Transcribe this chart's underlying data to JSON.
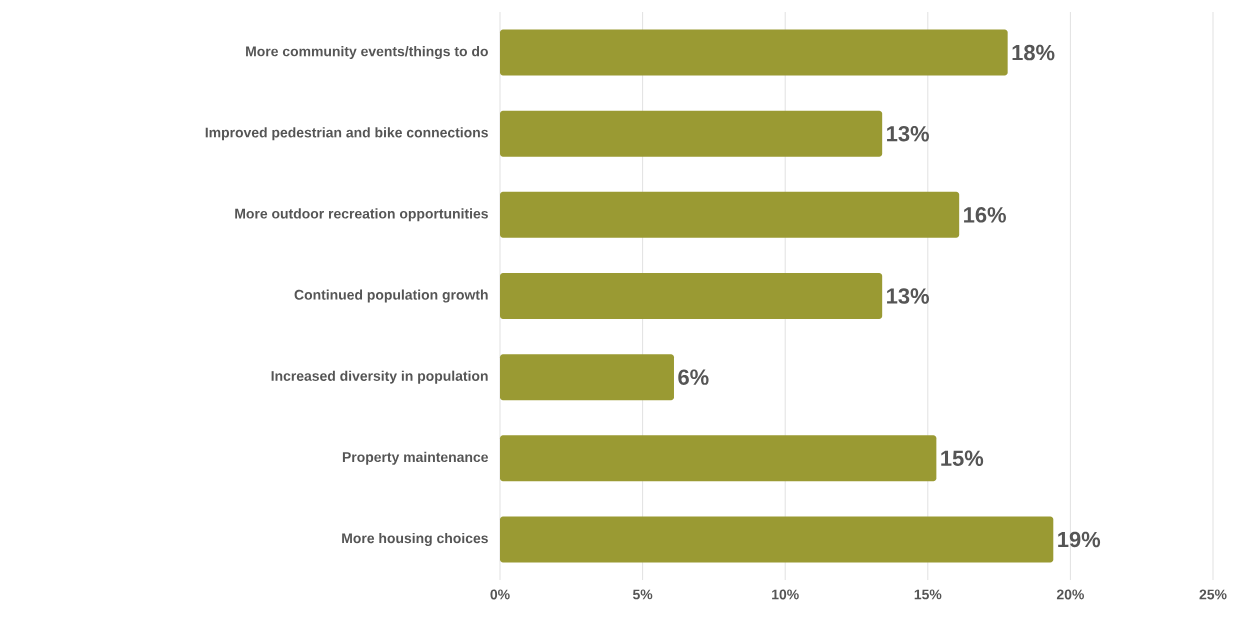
{
  "chart_data": {
    "type": "bar",
    "orientation": "horizontal",
    "categories": [
      "More community events/things to do",
      "Improved pedestrian and bike connections",
      "More outdoor recreation opportunities",
      "Continued population growth",
      "Increased diversity in population",
      "Property maintenance",
      "More housing choices"
    ],
    "values": [
      17.8,
      13.4,
      16.1,
      13.4,
      6.1,
      15.3,
      19.4
    ],
    "value_labels": [
      "18%",
      "13%",
      "16%",
      "13%",
      "6%",
      "15%",
      "19%"
    ],
    "color": "#9a9a33",
    "xlim": [
      0,
      25
    ],
    "xticks": [
      {
        "value": 0,
        "label": "0%"
      },
      {
        "value": 5,
        "label": "5%"
      },
      {
        "value": 10,
        "label": "10%"
      },
      {
        "value": 15,
        "label": "15%"
      },
      {
        "value": 20,
        "label": "20%"
      },
      {
        "value": 25,
        "label": "25%"
      }
    ],
    "grid": "x"
  }
}
